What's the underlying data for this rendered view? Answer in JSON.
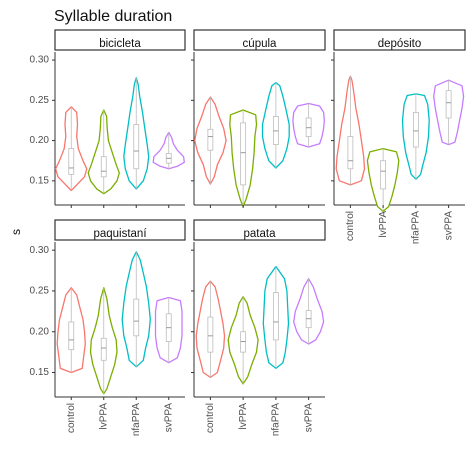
{
  "chart_data": {
    "type": "violin",
    "title": "Syllable duration",
    "ylabel": "s",
    "xlabel": "",
    "ylim": [
      0.12,
      0.31
    ],
    "yticks": [
      0.15,
      0.2,
      0.25,
      0.3
    ],
    "ytick_labels": [
      "0.15",
      "0.20",
      "0.25",
      "0.30"
    ],
    "categories": [
      "control",
      "lvPPA",
      "nfaPPA",
      "svPPA"
    ],
    "colors": {
      "control": "#F8766D",
      "lvPPA": "#7CAE00",
      "nfaPPA": "#00BFC4",
      "svPPA": "#C77CFF",
      "box": "#bdbdbd",
      "strip_border": "#333333"
    },
    "legend": "none",
    "grid": false,
    "panels": [
      {
        "name": "bicicleta",
        "groups": [
          {
            "category": "control",
            "min": 0.138,
            "max": 0.242,
            "q1": 0.158,
            "median": 0.166,
            "q3": 0.19,
            "profile": [
              [
                0.138,
                0.0
              ],
              [
                0.145,
                0.35
              ],
              [
                0.155,
                0.85
              ],
              [
                0.165,
                1.0
              ],
              [
                0.175,
                0.75
              ],
              [
                0.19,
                0.45
              ],
              [
                0.205,
                0.35
              ],
              [
                0.22,
                0.4
              ],
              [
                0.235,
                0.35
              ],
              [
                0.242,
                0.0
              ]
            ]
          },
          {
            "category": "lvPPA",
            "min": 0.134,
            "max": 0.238,
            "q1": 0.155,
            "median": 0.162,
            "q3": 0.18,
            "profile": [
              [
                0.134,
                0.0
              ],
              [
                0.14,
                0.45
              ],
              [
                0.15,
                0.85
              ],
              [
                0.16,
                1.0
              ],
              [
                0.17,
                0.8
              ],
              [
                0.185,
                0.55
              ],
              [
                0.2,
                0.3
              ],
              [
                0.215,
                0.22
              ],
              [
                0.23,
                0.18
              ],
              [
                0.238,
                0.0
              ]
            ]
          },
          {
            "category": "nfaPPA",
            "min": 0.14,
            "max": 0.278,
            "q1": 0.165,
            "median": 0.187,
            "q3": 0.22,
            "profile": [
              [
                0.14,
                0.0
              ],
              [
                0.15,
                0.45
              ],
              [
                0.165,
                0.7
              ],
              [
                0.18,
                0.8
              ],
              [
                0.195,
                0.7
              ],
              [
                0.215,
                0.55
              ],
              [
                0.235,
                0.4
              ],
              [
                0.255,
                0.22
              ],
              [
                0.27,
                0.12
              ],
              [
                0.278,
                0.0
              ]
            ]
          },
          {
            "category": "svPPA",
            "min": 0.165,
            "max": 0.21,
            "q1": 0.172,
            "median": 0.178,
            "q3": 0.184,
            "profile": [
              [
                0.165,
                0.0
              ],
              [
                0.168,
                0.55
              ],
              [
                0.173,
                1.0
              ],
              [
                0.18,
                0.95
              ],
              [
                0.188,
                0.55
              ],
              [
                0.196,
                0.3
              ],
              [
                0.204,
                0.18
              ],
              [
                0.21,
                0.0
              ]
            ]
          }
        ]
      },
      {
        "name": "cúpula",
        "groups": [
          {
            "category": "control",
            "min": 0.146,
            "max": 0.254,
            "q1": 0.188,
            "median": 0.205,
            "q3": 0.214,
            "profile": [
              [
                0.146,
                0.0
              ],
              [
                0.155,
                0.25
              ],
              [
                0.17,
                0.45
              ],
              [
                0.185,
                0.8
              ],
              [
                0.2,
                1.0
              ],
              [
                0.215,
                0.85
              ],
              [
                0.23,
                0.55
              ],
              [
                0.245,
                0.3
              ],
              [
                0.254,
                0.0
              ]
            ]
          },
          {
            "category": "lvPPA",
            "min": 0.118,
            "max": 0.238,
            "q1": 0.145,
            "median": 0.185,
            "q3": 0.222,
            "profile": [
              [
                0.118,
                0.0
              ],
              [
                0.128,
                0.2
              ],
              [
                0.145,
                0.45
              ],
              [
                0.165,
                0.6
              ],
              [
                0.185,
                0.7
              ],
              [
                0.205,
                0.75
              ],
              [
                0.22,
                0.85
              ],
              [
                0.232,
                0.8
              ],
              [
                0.238,
                0.0
              ]
            ]
          },
          {
            "category": "nfaPPA",
            "min": 0.166,
            "max": 0.272,
            "q1": 0.195,
            "median": 0.212,
            "q3": 0.23,
            "profile": [
              [
                0.166,
                0.0
              ],
              [
                0.175,
                0.45
              ],
              [
                0.19,
                0.7
              ],
              [
                0.205,
                0.85
              ],
              [
                0.22,
                0.85
              ],
              [
                0.238,
                0.65
              ],
              [
                0.255,
                0.45
              ],
              [
                0.268,
                0.25
              ],
              [
                0.272,
                0.0
              ]
            ]
          },
          {
            "category": "svPPA",
            "min": 0.192,
            "max": 0.246,
            "q1": 0.205,
            "median": 0.216,
            "q3": 0.228,
            "profile": [
              [
                0.192,
                0.0
              ],
              [
                0.196,
                0.7
              ],
              [
                0.205,
                0.85
              ],
              [
                0.215,
                0.95
              ],
              [
                0.225,
                1.0
              ],
              [
                0.235,
                0.95
              ],
              [
                0.243,
                0.7
              ],
              [
                0.246,
                0.0
              ]
            ]
          }
        ]
      },
      {
        "name": "depósito",
        "groups": [
          {
            "category": "control",
            "min": 0.145,
            "max": 0.28,
            "q1": 0.165,
            "median": 0.175,
            "q3": 0.205,
            "profile": [
              [
                0.145,
                0.0
              ],
              [
                0.15,
                0.7
              ],
              [
                0.165,
                0.9
              ],
              [
                0.18,
                0.85
              ],
              [
                0.2,
                0.7
              ],
              [
                0.22,
                0.55
              ],
              [
                0.24,
                0.35
              ],
              [
                0.26,
                0.22
              ],
              [
                0.275,
                0.1
              ],
              [
                0.28,
                0.0
              ]
            ]
          },
          {
            "category": "lvPPA",
            "min": 0.112,
            "max": 0.19,
            "q1": 0.14,
            "median": 0.162,
            "q3": 0.175,
            "profile": [
              [
                0.112,
                0.0
              ],
              [
                0.118,
                0.35
              ],
              [
                0.13,
                0.55
              ],
              [
                0.145,
                0.75
              ],
              [
                0.16,
                0.9
              ],
              [
                0.175,
                1.0
              ],
              [
                0.186,
                0.85
              ],
              [
                0.19,
                0.0
              ]
            ]
          },
          {
            "category": "nfaPPA",
            "min": 0.152,
            "max": 0.258,
            "q1": 0.192,
            "median": 0.212,
            "q3": 0.235,
            "profile": [
              [
                0.152,
                0.0
              ],
              [
                0.158,
                0.3
              ],
              [
                0.17,
                0.45
              ],
              [
                0.185,
                0.65
              ],
              [
                0.205,
                0.8
              ],
              [
                0.225,
                0.85
              ],
              [
                0.245,
                0.75
              ],
              [
                0.256,
                0.55
              ],
              [
                0.258,
                0.0
              ]
            ]
          },
          {
            "category": "svPPA",
            "min": 0.195,
            "max": 0.275,
            "q1": 0.228,
            "median": 0.247,
            "q3": 0.262,
            "profile": [
              [
                0.195,
                0.0
              ],
              [
                0.198,
                0.4
              ],
              [
                0.21,
                0.55
              ],
              [
                0.225,
                0.7
              ],
              [
                0.24,
                0.85
              ],
              [
                0.255,
                0.95
              ],
              [
                0.268,
                0.85
              ],
              [
                0.275,
                0.0
              ]
            ]
          }
        ]
      },
      {
        "name": "paquistaní",
        "groups": [
          {
            "category": "control",
            "min": 0.15,
            "max": 0.254,
            "q1": 0.178,
            "median": 0.19,
            "q3": 0.212,
            "profile": [
              [
                0.15,
                0.0
              ],
              [
                0.155,
                0.7
              ],
              [
                0.17,
                0.8
              ],
              [
                0.185,
                0.9
              ],
              [
                0.2,
                0.85
              ],
              [
                0.215,
                0.75
              ],
              [
                0.23,
                0.55
              ],
              [
                0.245,
                0.35
              ],
              [
                0.254,
                0.0
              ]
            ]
          },
          {
            "category": "lvPPA",
            "min": 0.124,
            "max": 0.254,
            "q1": 0.165,
            "median": 0.18,
            "q3": 0.192,
            "profile": [
              [
                0.124,
                0.0
              ],
              [
                0.13,
                0.2
              ],
              [
                0.145,
                0.45
              ],
              [
                0.16,
                0.7
              ],
              [
                0.175,
                0.85
              ],
              [
                0.19,
                0.8
              ],
              [
                0.205,
                0.55
              ],
              [
                0.22,
                0.35
              ],
              [
                0.24,
                0.2
              ],
              [
                0.254,
                0.0
              ]
            ]
          },
          {
            "category": "nfaPPA",
            "min": 0.157,
            "max": 0.298,
            "q1": 0.195,
            "median": 0.213,
            "q3": 0.24,
            "profile": [
              [
                0.157,
                0.0
              ],
              [
                0.165,
                0.45
              ],
              [
                0.18,
                0.6
              ],
              [
                0.195,
                0.8
              ],
              [
                0.215,
                0.9
              ],
              [
                0.235,
                0.8
              ],
              [
                0.255,
                0.65
              ],
              [
                0.272,
                0.45
              ],
              [
                0.288,
                0.25
              ],
              [
                0.298,
                0.0
              ]
            ]
          },
          {
            "category": "svPPA",
            "min": 0.162,
            "max": 0.242,
            "q1": 0.188,
            "median": 0.205,
            "q3": 0.222,
            "profile": [
              [
                0.162,
                0.0
              ],
              [
                0.168,
                0.55
              ],
              [
                0.18,
                0.75
              ],
              [
                0.195,
                0.85
              ],
              [
                0.21,
                0.85
              ],
              [
                0.225,
                0.85
              ],
              [
                0.238,
                0.75
              ],
              [
                0.242,
                0.0
              ]
            ]
          }
        ]
      },
      {
        "name": "patata",
        "groups": [
          {
            "category": "control",
            "min": 0.144,
            "max": 0.262,
            "q1": 0.175,
            "median": 0.195,
            "q3": 0.218,
            "profile": [
              [
                0.144,
                0.0
              ],
              [
                0.15,
                0.45
              ],
              [
                0.165,
                0.65
              ],
              [
                0.18,
                0.85
              ],
              [
                0.195,
                0.9
              ],
              [
                0.21,
                0.8
              ],
              [
                0.225,
                0.65
              ],
              [
                0.24,
                0.5
              ],
              [
                0.255,
                0.3
              ],
              [
                0.262,
                0.0
              ]
            ]
          },
          {
            "category": "lvPPA",
            "min": 0.136,
            "max": 0.243,
            "q1": 0.175,
            "median": 0.188,
            "q3": 0.2,
            "profile": [
              [
                0.136,
                0.0
              ],
              [
                0.145,
                0.3
              ],
              [
                0.16,
                0.55
              ],
              [
                0.175,
                0.85
              ],
              [
                0.19,
                0.95
              ],
              [
                0.205,
                0.75
              ],
              [
                0.22,
                0.45
              ],
              [
                0.235,
                0.25
              ],
              [
                0.243,
                0.0
              ]
            ]
          },
          {
            "category": "nfaPPA",
            "min": 0.155,
            "max": 0.28,
            "q1": 0.19,
            "median": 0.212,
            "q3": 0.248,
            "profile": [
              [
                0.155,
                0.0
              ],
              [
                0.162,
                0.45
              ],
              [
                0.175,
                0.6
              ],
              [
                0.19,
                0.7
              ],
              [
                0.21,
                0.8
              ],
              [
                0.23,
                0.75
              ],
              [
                0.25,
                0.7
              ],
              [
                0.265,
                0.55
              ],
              [
                0.28,
                0.0
              ]
            ]
          },
          {
            "category": "svPPA",
            "min": 0.185,
            "max": 0.265,
            "q1": 0.205,
            "median": 0.216,
            "q3": 0.226,
            "profile": [
              [
                0.185,
                0.0
              ],
              [
                0.19,
                0.45
              ],
              [
                0.2,
                0.75
              ],
              [
                0.212,
                0.95
              ],
              [
                0.225,
                0.85
              ],
              [
                0.24,
                0.55
              ],
              [
                0.255,
                0.3
              ],
              [
                0.265,
                0.0
              ]
            ]
          }
        ]
      }
    ]
  }
}
